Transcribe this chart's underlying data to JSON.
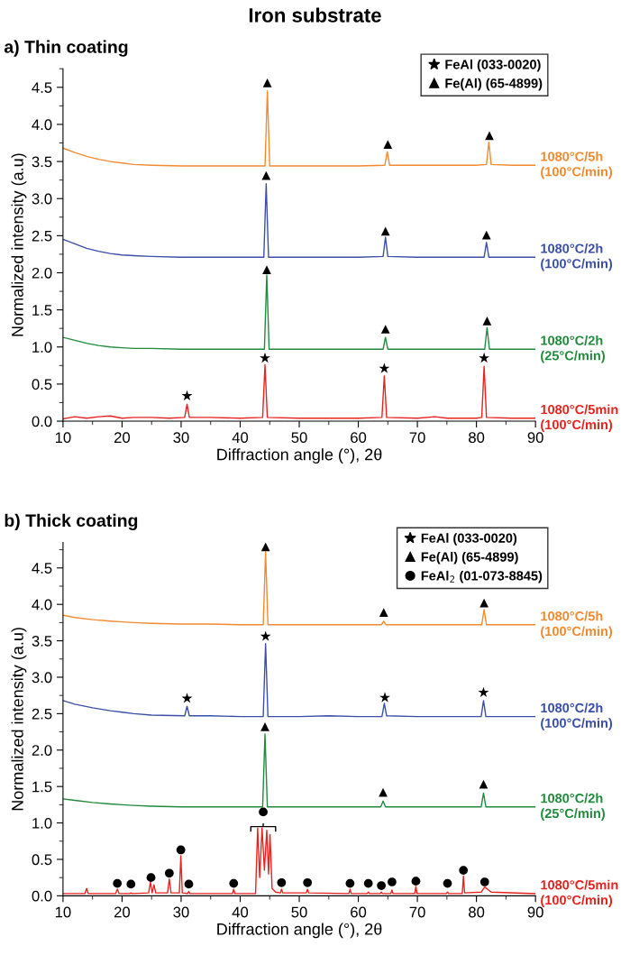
{
  "chart_data": [
    {
      "type": "line",
      "title": "Iron substrate",
      "subtitle": "a) Thin coating",
      "xlabel": "Diffraction angle (°), 2θ",
      "ylabel": "Normalized intensity (a.u)",
      "xlim": [
        10,
        90
      ],
      "xticks": [
        10,
        20,
        30,
        40,
        50,
        60,
        70,
        80,
        90
      ],
      "ylim": [
        0,
        4.75
      ],
      "yticks": [
        {
          "value": 0,
          "label": "0.0"
        },
        0.5,
        {
          "value": 1,
          "label": "1.0"
        },
        1.5,
        {
          "value": 2,
          "label": "2.0"
        },
        2.5,
        {
          "value": 3,
          "label": "3.0"
        },
        3.5,
        {
          "value": 4,
          "label": "4.0"
        },
        4.5
      ],
      "grid": false,
      "legend": "top right",
      "series": [
        {
          "name": "1080°C/5h\n(100°C/min)",
          "color": "#f28a30",
          "x": [
            10,
            12,
            14,
            16,
            18,
            20,
            22,
            25,
            30,
            35,
            40,
            44.2,
            44.6,
            45.0,
            50,
            55,
            60,
            64.5,
            64.9,
            65.3,
            70,
            75,
            80,
            81.7,
            82.1,
            82.5,
            86,
            90
          ],
          "values": [
            3.68,
            3.62,
            3.57,
            3.53,
            3.5,
            3.48,
            3.46,
            3.45,
            3.44,
            3.44,
            3.44,
            3.44,
            4.45,
            3.44,
            3.44,
            3.44,
            3.44,
            3.45,
            3.63,
            3.45,
            3.45,
            3.45,
            3.45,
            3.46,
            3.76,
            3.46,
            3.45,
            3.45
          ]
        },
        {
          "name": "1080°C/2h\n(100°C/min)",
          "color": "#3b4fa8",
          "x": [
            10,
            12,
            14,
            16,
            18,
            20,
            22,
            25,
            30,
            35,
            40,
            44.0,
            44.4,
            44.8,
            50,
            55,
            60,
            64.2,
            64.6,
            65.0,
            70,
            75,
            80,
            81.3,
            81.7,
            82.1,
            86,
            90
          ],
          "values": [
            2.45,
            2.39,
            2.33,
            2.29,
            2.26,
            2.24,
            2.23,
            2.22,
            2.21,
            2.21,
            2.21,
            2.21,
            3.2,
            2.21,
            2.21,
            2.21,
            2.21,
            2.22,
            2.48,
            2.22,
            2.21,
            2.21,
            2.21,
            2.21,
            2.41,
            2.21,
            2.21,
            2.21
          ]
        },
        {
          "name": "1080°C/2h\n(25°C/min)",
          "color": "#218a3c",
          "x": [
            10,
            12,
            14,
            16,
            18,
            20,
            22,
            25,
            30,
            35,
            40,
            44.1,
            44.5,
            44.9,
            50,
            55,
            60,
            64.2,
            64.6,
            65.0,
            70,
            75,
            80,
            81.4,
            81.8,
            82.2,
            86,
            90
          ],
          "values": [
            1.13,
            1.09,
            1.05,
            1.02,
            1.0,
            0.99,
            0.98,
            0.98,
            0.97,
            0.97,
            0.97,
            0.97,
            1.97,
            0.97,
            0.97,
            0.97,
            0.97,
            0.97,
            1.13,
            0.97,
            0.97,
            0.97,
            0.97,
            0.97,
            1.26,
            0.97,
            0.97,
            0.97
          ]
        },
        {
          "name": "1080°C/5min\n(100°C/min)",
          "color": "#e8231f",
          "x": [
            10,
            12,
            14,
            16,
            18,
            20,
            22,
            25,
            28,
            30.6,
            31.0,
            31.4,
            35,
            40,
            43.8,
            44.2,
            44.6,
            50,
            55,
            60,
            64.0,
            64.4,
            64.8,
            70,
            73,
            75,
            80,
            80.9,
            81.3,
            81.7,
            86,
            90
          ],
          "values": [
            0.03,
            0.06,
            0.04,
            0.06,
            0.07,
            0.04,
            0.05,
            0.05,
            0.04,
            0.05,
            0.23,
            0.05,
            0.05,
            0.04,
            0.05,
            0.76,
            0.05,
            0.04,
            0.04,
            0.04,
            0.05,
            0.61,
            0.05,
            0.04,
            0.06,
            0.04,
            0.04,
            0.05,
            0.74,
            0.05,
            0.04,
            0.04
          ]
        },
        {
          "type": "scatter",
          "name": "FeAl (033-0020)",
          "color": "#000000",
          "marker": "star",
          "x": [
            31.0,
            44.2,
            64.4,
            81.3
          ],
          "values": [
            0.34,
            0.85,
            0.71,
            0.85
          ]
        },
        {
          "type": "scatter",
          "name": "Fe(Al) (65-4899)",
          "color": "#000000",
          "marker": "triangle",
          "x": [
            44.6,
            65.0,
            82.2,
            44.4,
            64.6,
            81.7,
            44.5,
            64.6,
            81.8
          ],
          "values": [
            4.56,
            3.73,
            3.85,
            3.31,
            2.56,
            2.51,
            2.04,
            1.24,
            1.35
          ]
        }
      ]
    },
    {
      "type": "line",
      "title": "b) Thick coating",
      "xlabel": "Diffraction angle (°), 2θ",
      "ylabel": "Normalized intensity (a.u)",
      "xlim": [
        10,
        90
      ],
      "xticks": [
        10,
        20,
        30,
        40,
        50,
        60,
        70,
        80,
        90
      ],
      "ylim": [
        0,
        4.85
      ],
      "yticks": [
        {
          "value": 0,
          "label": "0.0"
        },
        0.5,
        {
          "value": 1,
          "label": "1.0"
        },
        1.5,
        {
          "value": 2,
          "label": "2.0"
        },
        2.5,
        {
          "value": 3,
          "label": "3.0"
        },
        3.5,
        {
          "value": 4,
          "label": "4.0"
        },
        4.5
      ],
      "grid": false,
      "legend": "top right",
      "series": [
        {
          "name": "1080°C/5h\n(100°C/min)",
          "color": "#f28a30",
          "x": [
            10,
            12,
            15,
            18,
            20,
            22,
            25,
            30,
            35,
            40,
            43.9,
            44.3,
            44.7,
            50,
            55,
            60,
            63.9,
            64.3,
            64.7,
            70,
            75,
            80,
            80.9,
            81.3,
            81.7,
            86,
            90
          ],
          "values": [
            3.85,
            3.82,
            3.79,
            3.77,
            3.76,
            3.75,
            3.74,
            3.73,
            3.73,
            3.72,
            3.72,
            4.72,
            3.72,
            3.72,
            3.72,
            3.72,
            3.72,
            3.77,
            3.72,
            3.72,
            3.72,
            3.72,
            3.72,
            3.93,
            3.72,
            3.72,
            3.72
          ]
        },
        {
          "name": "1080°C/2h\n(100°C/min)",
          "color": "#3b4fa8",
          "x": [
            10,
            12,
            15,
            18,
            20,
            22,
            25,
            30.6,
            31.0,
            31.4,
            35,
            40,
            43.9,
            44.3,
            44.7,
            50,
            55,
            60,
            64.0,
            64.4,
            64.8,
            70,
            75,
            80,
            80.8,
            81.2,
            81.6,
            86,
            90
          ],
          "values": [
            2.68,
            2.63,
            2.58,
            2.54,
            2.52,
            2.5,
            2.48,
            2.47,
            2.6,
            2.47,
            2.47,
            2.46,
            2.46,
            3.46,
            2.46,
            2.46,
            2.47,
            2.46,
            2.46,
            2.64,
            2.47,
            2.46,
            2.46,
            2.46,
            2.46,
            2.68,
            2.46,
            2.46,
            2.46
          ]
        },
        {
          "name": "1080°C/2h\n(25°C/min)",
          "color": "#218a3c",
          "x": [
            10,
            12,
            15,
            18,
            20,
            22,
            25,
            30,
            35,
            40,
            43.8,
            44.2,
            44.6,
            50,
            55,
            60,
            63.8,
            64.2,
            64.6,
            70,
            75,
            80,
            80.8,
            81.2,
            81.6,
            86,
            90
          ],
          "values": [
            1.33,
            1.31,
            1.28,
            1.26,
            1.25,
            1.24,
            1.23,
            1.22,
            1.22,
            1.22,
            1.22,
            2.22,
            1.22,
            1.22,
            1.22,
            1.22,
            1.22,
            1.3,
            1.22,
            1.22,
            1.22,
            1.22,
            1.22,
            1.41,
            1.22,
            1.22,
            1.22
          ]
        },
        {
          "name": "1080°C/5min\n(100°C/min)",
          "color": "#e8231f",
          "x": [
            10,
            13.7,
            14.0,
            14.3,
            18.9,
            19.2,
            19.5,
            21.3,
            21.5,
            21.7,
            24.5,
            24.8,
            25.1,
            25.4,
            25.7,
            27.7,
            28.0,
            28.3,
            29.7,
            29.95,
            30.2,
            31.1,
            31.3,
            31.5,
            38.7,
            38.9,
            39.1,
            42.6,
            42.96,
            43.3,
            43.7,
            44.1,
            44.5,
            44.8,
            45.05,
            45.4,
            46,
            46.8,
            47.0,
            47.2,
            51.2,
            51.4,
            51.6,
            58.4,
            58.6,
            58.8,
            61.5,
            61.7,
            61.9,
            63.7,
            63.9,
            64.1,
            65.5,
            65.7,
            65.9,
            69.55,
            69.75,
            69.95,
            74.9,
            75.1,
            75.3,
            77.6,
            77.8,
            78.0,
            80.8,
            81.4,
            82.5,
            90
          ],
          "values": [
            0.03,
            0.03,
            0.1,
            0.03,
            0.03,
            0.09,
            0.03,
            0.03,
            0.04,
            0.03,
            0.04,
            0.19,
            0.04,
            0.15,
            0.04,
            0.04,
            0.23,
            0.04,
            0.04,
            0.55,
            0.04,
            0.03,
            0.06,
            0.03,
            0.03,
            0.09,
            0.03,
            0.03,
            0.93,
            0.25,
            0.93,
            0.35,
            0.9,
            0.3,
            0.84,
            0.1,
            0.05,
            0.04,
            0.09,
            0.04,
            0.04,
            0.09,
            0.04,
            0.03,
            0.09,
            0.03,
            0.03,
            0.05,
            0.03,
            0.03,
            0.05,
            0.03,
            0.03,
            0.08,
            0.03,
            0.03,
            0.13,
            0.03,
            0.03,
            0.05,
            0.03,
            0.03,
            0.27,
            0.04,
            0.05,
            0.12,
            0.05,
            0.03
          ]
        },
        {
          "type": "scatter",
          "name": "FeAl (033-0020)",
          "color": "#000000",
          "marker": "star",
          "x": [
            31.0,
            44.3,
            64.5,
            81.2
          ],
          "values": [
            2.71,
            3.56,
            2.72,
            2.79
          ]
        },
        {
          "type": "scatter",
          "name": "Fe(Al) (65-4899)",
          "color": "#000000",
          "marker": "triangle",
          "x": [
            44.3,
            64.3,
            81.3,
            44.2,
            64.2,
            81.2
          ],
          "values": [
            4.79,
            3.89,
            4.02,
            2.32,
            1.42,
            1.53
          ]
        },
        {
          "type": "scatter",
          "name": "FeAl$_{2}$ (01-073-8845)",
          "color": "#000000",
          "marker": "circle",
          "x": [
            19.2,
            21.5,
            24.9,
            28.0,
            29.95,
            31.3,
            38.9,
            43.9,
            47.0,
            51.4,
            58.6,
            61.7,
            63.9,
            65.7,
            69.75,
            75.1,
            77.8,
            81.4
          ],
          "values": [
            0.17,
            0.16,
            0.25,
            0.31,
            0.63,
            0.16,
            0.17,
            1.15,
            0.18,
            0.18,
            0.17,
            0.17,
            0.14,
            0.19,
            0.2,
            0.17,
            0.35,
            0.19
          ]
        }
      ]
    }
  ]
}
